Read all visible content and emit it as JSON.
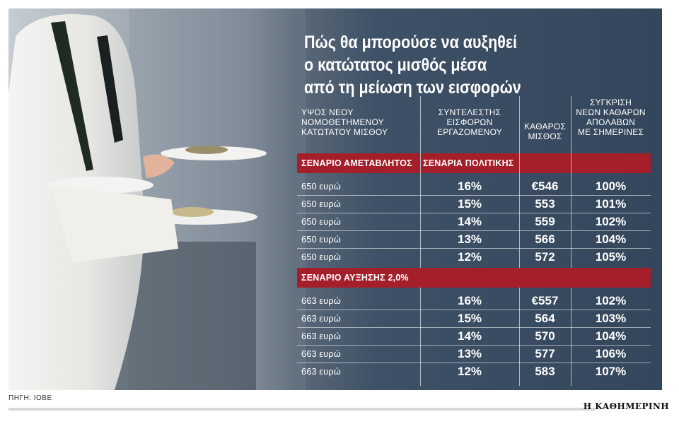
{
  "title_lines": [
    "Πώς θα μπορούσε να αυξηθεί",
    "ο κατώτατος μισθός μέσα",
    "από τη μείωση των εισφορών"
  ],
  "source": "ΠΗΓΗ: ΙΟΒΕ",
  "logo": "Η ΚΑΘΗΜΕΡΙΝΗ",
  "colors": {
    "band": "#a51f2b",
    "panel": "#34465b",
    "text": "#ffffff"
  },
  "chart_data": {
    "type": "table",
    "columns": [
      [
        "ΥΨΟΣ ΝΕΟΥ",
        "ΝΟΜΟΘΕΤΗΜΕΝΟΥ",
        "ΚΑΤΩΤΑΤΟΥ ΜΙΣΘΟΥ"
      ],
      [
        "ΣΥΝΤΕΛΕΣΤΗΣ",
        "ΕΙΣΦΟΡΩΝ",
        "ΕΡΓΑΖΟΜΕΝΟΥ"
      ],
      [
        "ΚΑΘΑΡΟΣ",
        "ΜΙΣΘΟΣ"
      ],
      [
        "ΣΥΓΚΡΙΣΗ",
        "ΝΕΩΝ ΚΑΘΑΡΩΝ",
        "ΑΠΟΛΑΒΩΝ",
        "ΜΕ ΣΗΜΕΡΙΝΕΣ"
      ]
    ],
    "sections": [
      {
        "label": "ΣΕΝΑΡΙΟ ΑΜΕΤΑΒΛΗΤΟΣ",
        "label2": "ΣΕΝΑΡΙΑ ΠΟΛΙΤΙΚΗΣ",
        "rows": [
          [
            "650 ευρώ",
            "16%",
            "€546",
            "100%"
          ],
          [
            "650 ευρώ",
            "15%",
            "553",
            "101%"
          ],
          [
            "650 ευρώ",
            "14%",
            "559",
            "102%"
          ],
          [
            "650 ευρώ",
            "13%",
            "566",
            "104%"
          ],
          [
            "650 ευρώ",
            "12%",
            "572",
            "105%"
          ]
        ]
      },
      {
        "label": "ΣΕΝΑΡΙΟ ΑΥΞΗΣΗΣ 2,0%",
        "label2": "",
        "rows": [
          [
            "663 ευρώ",
            "16%",
            "€557",
            "102%"
          ],
          [
            "663 ευρώ",
            "15%",
            "564",
            "103%"
          ],
          [
            "663 ευρώ",
            "14%",
            "570",
            "104%"
          ],
          [
            "663 ευρώ",
            "13%",
            "577",
            "106%"
          ],
          [
            "663 ευρώ",
            "12%",
            "583",
            "107%"
          ]
        ]
      }
    ]
  }
}
